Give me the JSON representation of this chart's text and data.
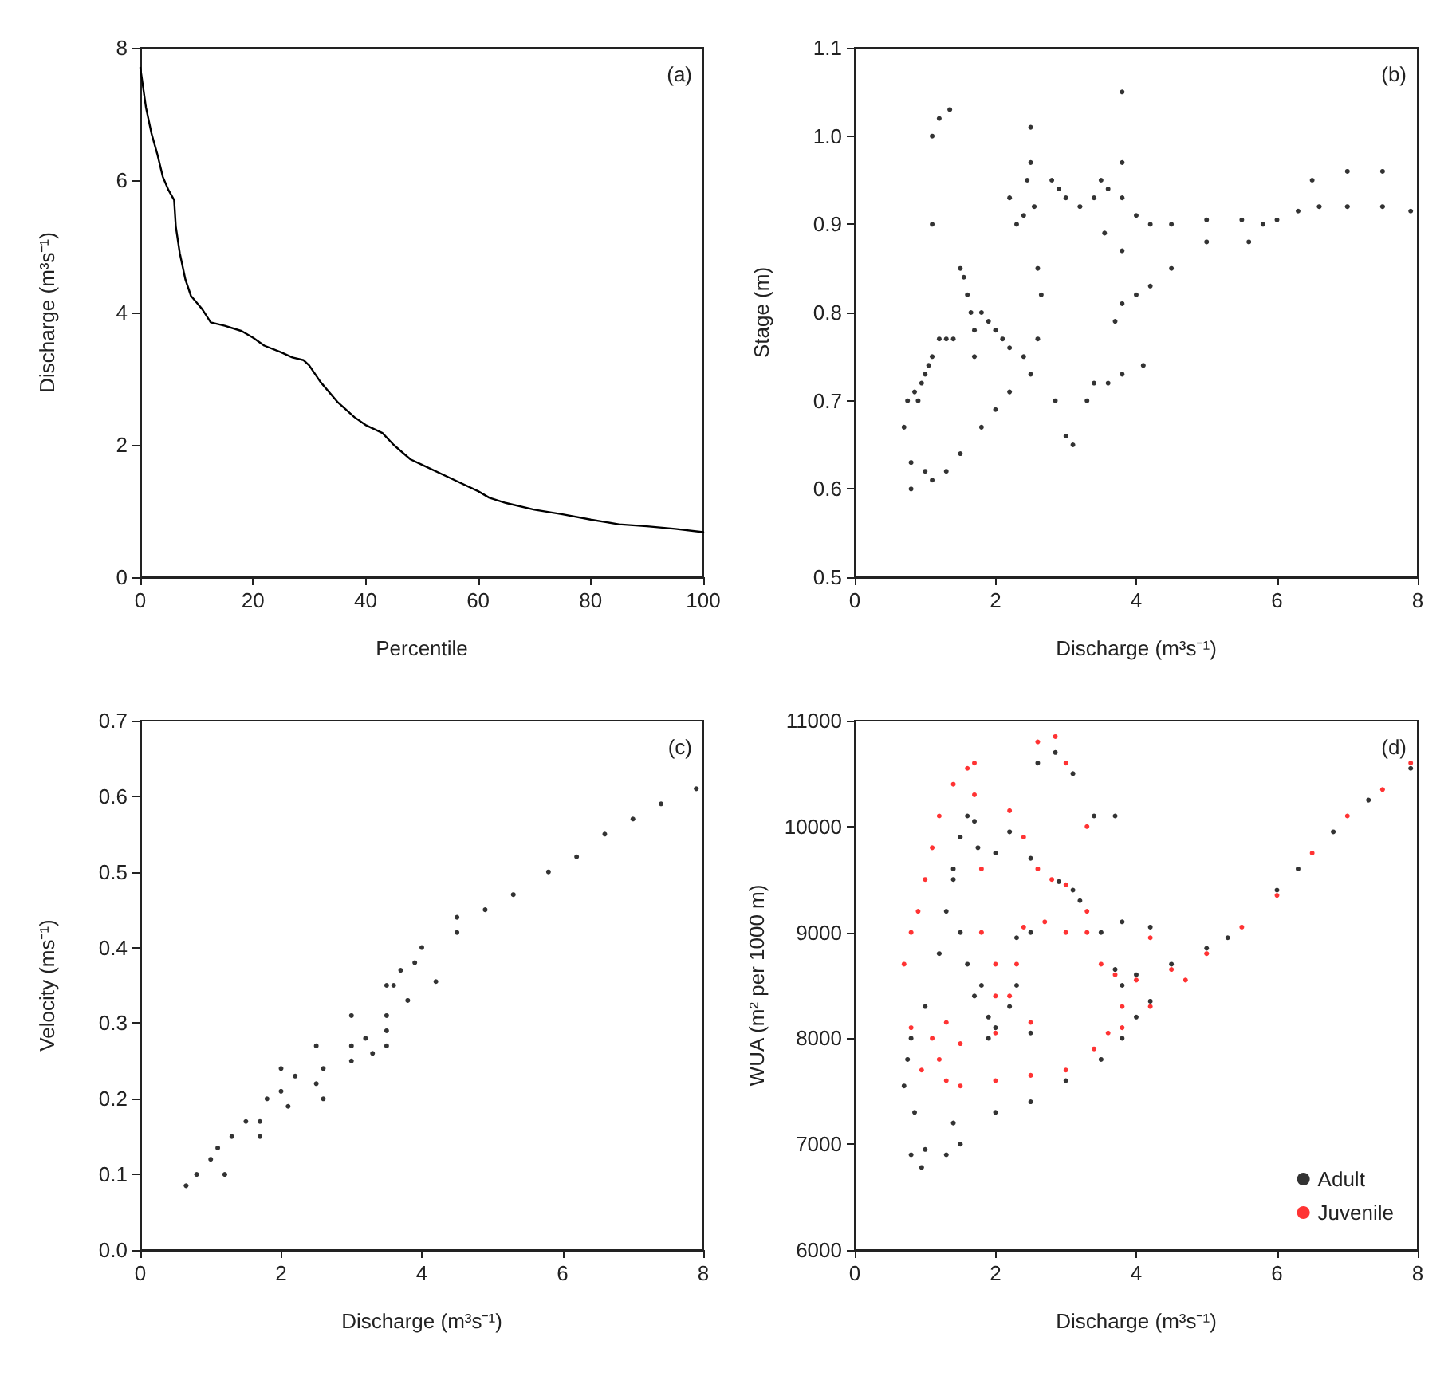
{
  "chart_data": [
    {
      "type": "line",
      "xlabel": "Percentile",
      "ylabel": "Discharge (m³s⁻¹)",
      "annotations": [
        "(a)"
      ],
      "color": "#000000",
      "marker": "none",
      "line_style": "solid",
      "grid": false,
      "legend": false,
      "x": [
        0,
        1,
        2,
        3,
        4,
        5,
        6,
        6.3,
        7,
        8,
        9,
        10,
        11,
        12.5,
        15,
        18,
        20,
        22,
        25,
        27,
        29,
        30,
        32,
        35,
        38,
        40,
        43,
        45,
        48,
        50,
        55,
        60,
        62,
        65,
        70,
        75,
        80,
        85,
        90,
        95,
        100
      ],
      "values": [
        7.7,
        7.1,
        6.7,
        6.4,
        6.05,
        5.85,
        5.7,
        5.3,
        4.9,
        4.5,
        4.25,
        4.15,
        4.05,
        3.85,
        3.8,
        3.72,
        3.62,
        3.5,
        3.4,
        3.32,
        3.28,
        3.2,
        2.95,
        2.65,
        2.42,
        2.3,
        2.18,
        2.0,
        1.78,
        1.7,
        1.5,
        1.3,
        1.2,
        1.12,
        1.02,
        0.95,
        0.87,
        0.8,
        0.77,
        0.73,
        0.68
      ],
      "xlim": [
        0,
        100
      ],
      "xticks": [
        0,
        20,
        40,
        60,
        80,
        100
      ],
      "ylim": [
        0,
        8
      ],
      "yticks": [
        0,
        2,
        4,
        6,
        8
      ]
    },
    {
      "type": "scatter",
      "xlabel": "Discharge (m³s⁻¹)",
      "ylabel": "Stage (m)",
      "annotations": [
        "(b)"
      ],
      "color": "#000000",
      "marker": "circle",
      "grid": false,
      "legend": false,
      "x": [
        0.7,
        0.75,
        0.8,
        0.8,
        0.85,
        0.9,
        0.95,
        1.0,
        1.05,
        1.1,
        1.2,
        1.3,
        1.4,
        1.1,
        1.2,
        1.35,
        1.1,
        1.5,
        1.55,
        1.6,
        1.65,
        1.7,
        1.7,
        1.8,
        1.9,
        2.0,
        2.1,
        2.2,
        2.4,
        2.6,
        2.2,
        2.3,
        2.4,
        2.45,
        2.5,
        2.5,
        2.55,
        2.6,
        2.65,
        2.8,
        2.9,
        3.0,
        3.2,
        3.4,
        3.5,
        3.6,
        3.8,
        3.8,
        3.8,
        3.8,
        3.55,
        3.0,
        2.85,
        3.1,
        3.3,
        3.4,
        3.6,
        3.8,
        4.1,
        3.7,
        3.8,
        4.0,
        4.2,
        4.5,
        5.0,
        4.0,
        4.2,
        4.5,
        5.0,
        5.5,
        5.8,
        6.0,
        6.3,
        6.6,
        7.0,
        7.5,
        7.9,
        6.5,
        7.0,
        7.5,
        5.6,
        1.3,
        1.5,
        1.8,
        2.0,
        2.2,
        2.5,
        1.0,
        1.1
      ],
      "values": [
        0.67,
        0.7,
        0.6,
        0.63,
        0.71,
        0.7,
        0.72,
        0.73,
        0.74,
        0.75,
        0.77,
        0.77,
        0.77,
        1.0,
        1.02,
        1.03,
        0.9,
        0.85,
        0.84,
        0.82,
        0.8,
        0.78,
        0.75,
        0.8,
        0.79,
        0.78,
        0.77,
        0.76,
        0.75,
        0.77,
        0.93,
        0.9,
        0.91,
        0.95,
        0.97,
        1.01,
        0.92,
        0.85,
        0.82,
        0.95,
        0.94,
        0.93,
        0.92,
        0.93,
        0.95,
        0.94,
        0.93,
        1.05,
        0.97,
        0.87,
        0.89,
        0.66,
        0.7,
        0.65,
        0.7,
        0.72,
        0.72,
        0.73,
        0.74,
        0.79,
        0.81,
        0.82,
        0.83,
        0.85,
        0.88,
        0.91,
        0.9,
        0.9,
        0.905,
        0.905,
        0.9,
        0.905,
        0.915,
        0.92,
        0.92,
        0.92,
        0.915,
        0.95,
        0.96,
        0.96,
        0.88,
        0.62,
        0.64,
        0.67,
        0.69,
        0.71,
        0.73,
        0.62,
        0.61
      ],
      "xlim": [
        0,
        8
      ],
      "xticks": [
        0,
        2,
        4,
        6,
        8
      ],
      "ylim": [
        0.5,
        1.1
      ],
      "yticks": [
        0.5,
        0.6,
        0.7,
        0.8,
        0.9,
        {
          "value": 1,
          "label": "1.0"
        },
        1.1
      ]
    },
    {
      "type": "scatter",
      "xlabel": "Discharge (m³s⁻¹)",
      "ylabel": "Velocity (ms⁻¹)",
      "annotations": [
        "(c)"
      ],
      "color": "#000000",
      "marker": "circle",
      "grid": false,
      "legend": false,
      "x": [
        0.65,
        0.8,
        1.0,
        1.1,
        1.2,
        1.3,
        1.5,
        1.7,
        1.7,
        1.8,
        2.0,
        2.1,
        2.2,
        2.5,
        2.6,
        2.6,
        3.0,
        3.0,
        3.2,
        3.5,
        3.3,
        3.5,
        3.5,
        3.8,
        4.2,
        3.6,
        3.7,
        3.9,
        4.0,
        4.5,
        4.9,
        5.3,
        5.8,
        6.2,
        6.6,
        7.0,
        7.4,
        7.9,
        2.0,
        2.5,
        3.0,
        3.5,
        4.5
      ],
      "values": [
        0.085,
        0.1,
        0.12,
        0.135,
        0.1,
        0.15,
        0.17,
        0.17,
        0.15,
        0.2,
        0.21,
        0.19,
        0.23,
        0.22,
        0.24,
        0.2,
        0.25,
        0.27,
        0.28,
        0.27,
        0.26,
        0.29,
        0.31,
        0.33,
        0.355,
        0.35,
        0.37,
        0.38,
        0.4,
        0.44,
        0.45,
        0.47,
        0.5,
        0.52,
        0.55,
        0.57,
        0.59,
        0.61,
        0.24,
        0.27,
        0.31,
        0.35,
        0.42
      ],
      "xlim": [
        0,
        8
      ],
      "xticks": [
        0,
        2,
        4,
        6,
        8
      ],
      "ylim": [
        0,
        0.7
      ],
      "yticks": [
        {
          "value": 0,
          "label": "0.0"
        },
        0.1,
        0.2,
        0.3,
        0.4,
        0.5,
        0.6,
        0.7
      ]
    },
    {
      "type": "scatter",
      "xlabel": "Discharge (m³s⁻¹)",
      "ylabel": "WUA (m² per 1000 m)",
      "annotations": [
        "(d)"
      ],
      "marker": "circle",
      "grid": false,
      "legend": "bottom right",
      "series": [
        {
          "name": "Adult",
          "color": "#000000",
          "x": [
            0.7,
            0.75,
            0.8,
            0.8,
            0.85,
            0.95,
            1.0,
            1.0,
            1.2,
            1.3,
            1.4,
            1.5,
            1.6,
            1.7,
            1.75,
            1.4,
            1.5,
            1.6,
            1.7,
            1.8,
            1.9,
            2.0,
            2.2,
            2.3,
            1.3,
            1.4,
            1.5,
            2.0,
            2.5,
            3.0,
            3.5,
            3.8,
            4.0,
            4.2,
            3.8,
            3.7,
            4.0,
            4.5,
            5.0,
            5.3,
            6.0,
            6.3,
            6.8,
            7.3,
            7.9,
            2.2,
            2.5,
            2.9,
            3.1,
            3.2,
            3.5,
            3.8,
            4.2,
            2.6,
            2.85,
            3.1,
            3.4,
            3.7,
            2.3,
            2.5,
            2.0,
            1.9,
            2.5
          ],
          "values": [
            7550,
            7800,
            8000,
            6900,
            7300,
            6780,
            6950,
            8300,
            8800,
            9200,
            9600,
            9900,
            10100,
            10050,
            9800,
            9500,
            9000,
            8700,
            8400,
            8500,
            8200,
            8100,
            8300,
            8500,
            6900,
            7200,
            7000,
            7300,
            7400,
            7600,
            7800,
            8000,
            8200,
            8350,
            8500,
            8650,
            8600,
            8700,
            8850,
            8950,
            9400,
            9600,
            9950,
            10250,
            10550,
            9950,
            9700,
            9480,
            9400,
            9300,
            9000,
            9100,
            9050,
            10600,
            10700,
            10500,
            10100,
            10100,
            8950,
            9000,
            9750,
            8000,
            8050
          ]
        },
        {
          "name": "Juvenile",
          "color": "#ff0000",
          "x": [
            0.7,
            0.8,
            0.9,
            1.0,
            1.1,
            1.2,
            1.4,
            1.6,
            1.7,
            1.7,
            1.8,
            1.8,
            2.0,
            2.0,
            2.2,
            2.3,
            2.2,
            2.4,
            2.6,
            2.8,
            3.0,
            3.3,
            3.0,
            3.5,
            3.7,
            4.0,
            4.5,
            5.0,
            5.5,
            6.0,
            6.5,
            7.0,
            7.5,
            7.9,
            3.8,
            3.6,
            3.4,
            3.8,
            4.2,
            4.7,
            2.6,
            2.85,
            3.0,
            3.3,
            3.3,
            0.8,
            0.95,
            1.1,
            1.3,
            1.5,
            2.0,
            2.5,
            3.0,
            1.2,
            1.5,
            2.0,
            2.5,
            1.3,
            2.4,
            2.7,
            4.2
          ],
          "values": [
            8700,
            9000,
            9200,
            9500,
            9800,
            10100,
            10400,
            10550,
            10600,
            10300,
            9600,
            9000,
            8700,
            8400,
            8400,
            8700,
            10150,
            9900,
            9600,
            9500,
            9450,
            9200,
            9000,
            8700,
            8600,
            8550,
            8650,
            8800,
            9050,
            9350,
            9750,
            10100,
            10350,
            10600,
            8300,
            8050,
            7900,
            8100,
            8300,
            8550,
            10800,
            10850,
            10600,
            10000,
            9000,
            8100,
            7700,
            8000,
            7600,
            7550,
            7600,
            7650,
            7700,
            7800,
            7950,
            8050,
            8150,
            8150,
            9050,
            9100,
            8950
          ]
        }
      ],
      "xlim": [
        0,
        8
      ],
      "xticks": [
        0,
        2,
        4,
        6,
        8
      ],
      "ylim": [
        6000,
        11000
      ],
      "yticks": [
        6000,
        7000,
        8000,
        9000,
        10000,
        11000
      ]
    }
  ]
}
